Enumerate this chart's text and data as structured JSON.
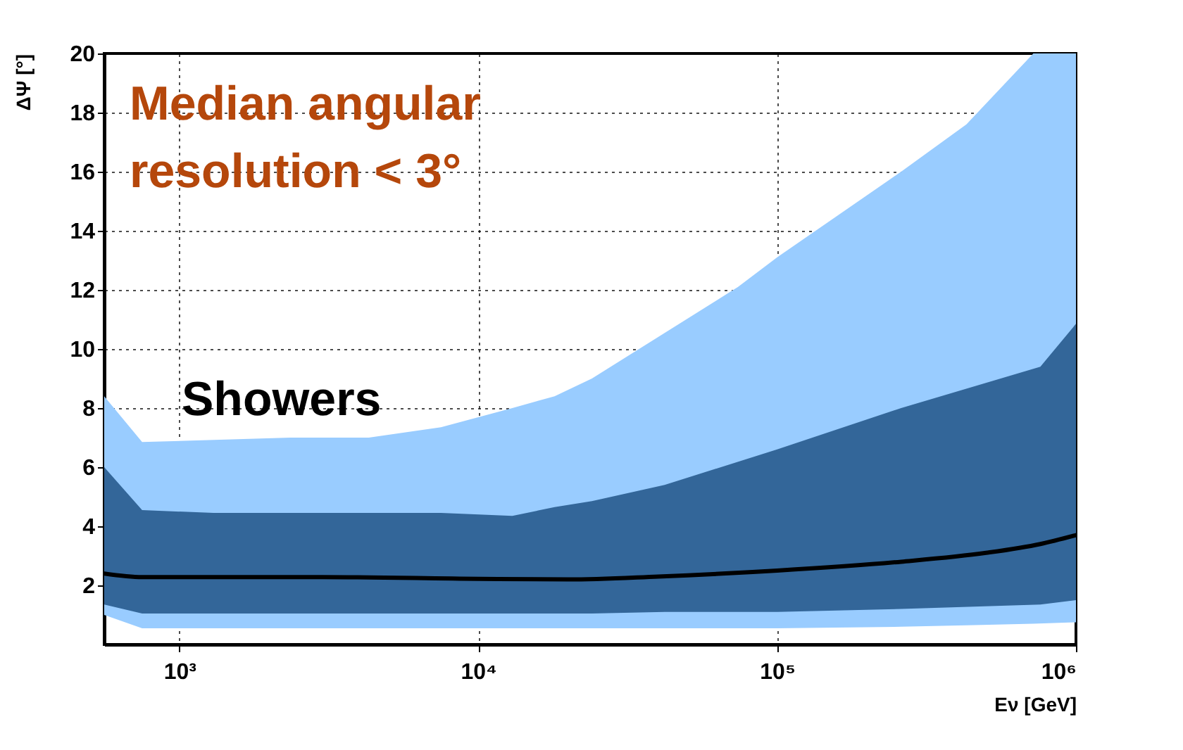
{
  "chart_data": {
    "type": "line",
    "xlabel": "Eν [GeV]",
    "ylabel": "ΔΨ [°]",
    "annotations": [
      "Median angular\nresolution < 3°",
      "Showers"
    ],
    "log": "x",
    "grid": true,
    "xlim": [
      560,
      1000000
    ],
    "ylim": [
      0,
      20
    ],
    "xticks": [
      {
        "value": 1000,
        "label": "10³"
      },
      {
        "value": 10000,
        "label": "10⁴"
      },
      {
        "value": 100000,
        "label": "10⁵"
      },
      {
        "value": 1000000,
        "label": "10⁶"
      }
    ],
    "yticks": [
      2,
      4,
      6,
      8,
      10,
      12,
      14,
      16,
      18,
      20
    ],
    "series": [
      {
        "type": "area",
        "color": "#99ccff",
        "x": [
          560,
          750,
          2350,
          4300,
          7500,
          13000,
          18000,
          24000,
          74000,
          100000,
          260000,
          430000,
          720000,
          1000000
        ],
        "values": [
          null,
          null,
          null,
          null,
          null,
          null,
          null,
          null,
          null,
          null,
          null,
          null,
          null,
          null
        ],
        "lower": [
          1.0,
          0.55,
          0.55,
          0.55,
          0.55,
          0.55,
          0.55,
          0.55,
          0.55,
          0.55,
          0.6,
          0.65,
          0.7,
          0.75
        ],
        "upper": [
          8.4,
          6.85,
          7.0,
          7.0,
          7.35,
          8.0,
          8.4,
          9.0,
          12.1,
          13.1,
          16.0,
          17.6,
          20,
          20
        ]
      },
      {
        "type": "area",
        "color": "#336699",
        "x": [
          560,
          750,
          1300,
          7500,
          13000,
          18000,
          24000,
          42000,
          100000,
          260000,
          760000,
          1000000
        ],
        "values": [
          null,
          null,
          null,
          null,
          null,
          null,
          null,
          null,
          null,
          null,
          null,
          null
        ],
        "lower": [
          1.35,
          1.05,
          1.05,
          1.05,
          1.05,
          1.05,
          1.05,
          1.1,
          1.1,
          1.2,
          1.35,
          1.5
        ],
        "upper": [
          6.0,
          4.55,
          4.45,
          4.45,
          4.35,
          4.65,
          4.85,
          5.4,
          6.6,
          8.0,
          9.4,
          10.85
        ]
      },
      {
        "color": "#000000",
        "line_style": "solid",
        "x": [
          560,
          750,
          3000,
          10000,
          20000,
          40000,
          100000,
          260000,
          500000,
          760000,
          1000000
        ],
        "values": [
          2.4,
          2.28,
          2.28,
          2.22,
          2.2,
          2.3,
          2.5,
          2.8,
          3.1,
          3.4,
          3.7
        ]
      }
    ]
  }
}
